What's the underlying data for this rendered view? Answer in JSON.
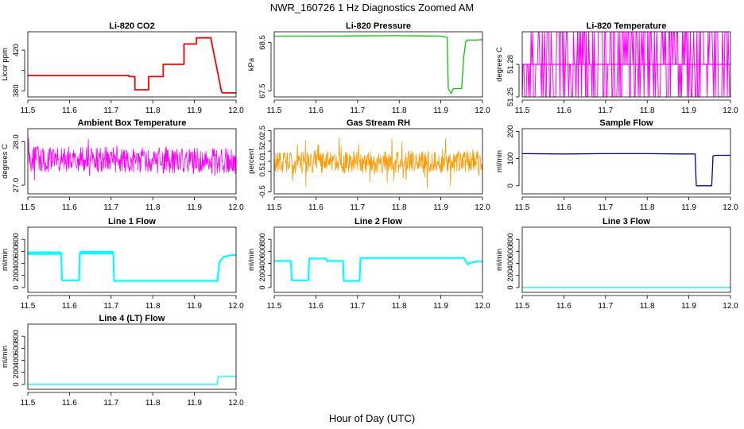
{
  "figure": {
    "title": "NWR_160726  1 Hz Diagnostics Zoomed AM",
    "xlabel": "Hour of Day (UTC)"
  },
  "chart_data": [
    {
      "type": "line",
      "title": "Li-820 CO2",
      "ylabel": "Licor ppm",
      "color": "#ff0000",
      "xlim": [
        11.5,
        12.0
      ],
      "ylim": [
        374,
        438
      ],
      "xticks": [
        11.5,
        11.6,
        11.7,
        11.8,
        11.9,
        12.0
      ],
      "xtick_labels": [
        "11.5",
        "11.6",
        "11.7",
        "11.8",
        "11.9",
        "12.0"
      ],
      "yticks": [
        380,
        400,
        420
      ],
      "ytick_labels": [
        "380",
        "",
        "420"
      ],
      "series": [
        {
          "x": [
            11.5,
            11.743,
            11.743,
            11.757,
            11.757,
            11.79,
            11.79,
            11.825,
            11.825,
            11.875,
            11.875,
            11.905,
            11.905,
            11.94,
            11.94,
            11.955,
            11.965,
            11.968,
            12.0
          ],
          "y": [
            395,
            395,
            394,
            394,
            381,
            381,
            394,
            394,
            406,
            406,
            426,
            426,
            432,
            432,
            430,
            400,
            379,
            378,
            378
          ]
        }
      ]
    },
    {
      "type": "line",
      "title": "Li-820 Pressure",
      "ylabel": "kPa",
      "color": "#00cc00",
      "xlim": [
        11.5,
        12.0
      ],
      "ylim": [
        67.38,
        68.72
      ],
      "xticks": [
        11.5,
        11.6,
        11.7,
        11.8,
        11.9,
        12.0
      ],
      "xtick_labels": [
        "11.5",
        "11.6",
        "11.7",
        "11.8",
        "11.9",
        "12.0"
      ],
      "yticks": [
        67.5,
        68.5
      ],
      "ytick_labels": [
        "67.5",
        "68.5"
      ],
      "series": [
        {
          "x": [
            11.5,
            11.6,
            11.7,
            11.8,
            11.85,
            11.9,
            11.915,
            11.918,
            11.925,
            11.93,
            11.95,
            11.955,
            11.96,
            11.965,
            11.985,
            12.0
          ],
          "y": [
            68.63,
            68.63,
            68.635,
            68.64,
            68.635,
            68.63,
            68.6,
            67.55,
            67.45,
            67.55,
            67.55,
            68.2,
            68.52,
            68.55,
            68.55,
            68.56
          ]
        }
      ]
    },
    {
      "type": "line",
      "title": "Li-820 Temperature",
      "ylabel": "degrees C",
      "color": "#ff00ff",
      "xlim": [
        11.5,
        12.0
      ],
      "ylim": [
        51.25,
        51.31
      ],
      "xticks": [
        11.5,
        11.6,
        11.7,
        11.8,
        11.9,
        12.0
      ],
      "xtick_labels": [
        "11.5",
        "11.6",
        "11.7",
        "11.8",
        "11.9",
        "12.0"
      ],
      "yticks": [
        51.25,
        51.28
      ],
      "ytick_labels": [
        "51.25",
        "51.28"
      ],
      "series": [
        {
          "x": [
            11.5,
            12.0
          ],
          "y": [
            51.28,
            51.28
          ]
        }
      ]
    },
    {
      "type": "line",
      "title": "Ambient Box Temperature",
      "ylabel": "degrees C",
      "color": "#ff00ff",
      "xlim": [
        11.5,
        12.0
      ],
      "ylim": [
        26.8,
        28.3
      ],
      "xticks": [
        11.5,
        11.6,
        11.7,
        11.8,
        11.9,
        12.0
      ],
      "xtick_labels": [
        "11.5",
        "11.6",
        "11.7",
        "11.8",
        "11.9",
        "12.0"
      ],
      "yticks": [
        27.0,
        28.0
      ],
      "ytick_labels": [
        "27.0",
        "28.0"
      ],
      "series": [
        {
          "x": [
            11.5,
            12.0
          ],
          "y": [
            27.6,
            27.55
          ]
        }
      ]
    },
    {
      "type": "line",
      "title": "Gas Stream RH",
      "ylabel": "percent",
      "color": "#ff9900",
      "xlim": [
        11.5,
        12.0
      ],
      "ylim": [
        -0.6,
        2.6
      ],
      "xticks": [
        11.5,
        11.6,
        11.7,
        11.8,
        11.9,
        12.0
      ],
      "xtick_labels": [
        "11.5",
        "11.6",
        "11.7",
        "11.8",
        "11.9",
        "12.0"
      ],
      "yticks": [
        -0.5,
        0.5,
        1.0,
        1.5,
        2.0,
        2.5
      ],
      "ytick_labels": [
        "-0.5",
        "0.5",
        "1.0",
        "1.5",
        "2.0",
        "2.5"
      ],
      "series": [
        {
          "x": [
            11.5,
            12.0
          ],
          "y": [
            0.95,
            0.95
          ]
        }
      ]
    },
    {
      "type": "line",
      "title": "Sample Flow",
      "ylabel": "ml/min",
      "color": "#0000cc",
      "xlim": [
        11.5,
        12.0
      ],
      "ylim": [
        -30,
        210
      ],
      "xticks": [
        11.5,
        11.6,
        11.7,
        11.8,
        11.9,
        12.0
      ],
      "xtick_labels": [
        "11.5",
        "11.6",
        "11.7",
        "11.8",
        "11.9",
        "12.0"
      ],
      "yticks": [
        0,
        100,
        200
      ],
      "ytick_labels": [
        "0",
        "100",
        "200"
      ],
      "series": [
        {
          "x": [
            11.5,
            11.6,
            11.7,
            11.8,
            11.88,
            11.915,
            11.918,
            11.925,
            11.955,
            11.958,
            11.965,
            12.0
          ],
          "y": [
            118,
            117,
            118,
            118,
            117,
            117,
            0,
            0,
            0,
            110,
            112,
            112
          ]
        }
      ]
    },
    {
      "type": "line",
      "title": "Line 1 Flow",
      "ylabel": "ml/min",
      "color": "#00ffff",
      "xlim": [
        11.5,
        12.0
      ],
      "ylim": [
        -80,
        1000
      ],
      "xticks": [
        11.5,
        11.6,
        11.7,
        11.8,
        11.9,
        12.0
      ],
      "xtick_labels": [
        "11.5",
        "11.6",
        "11.7",
        "11.8",
        "11.9",
        "12.0"
      ],
      "yticks": [
        0,
        200,
        400,
        600,
        800
      ],
      "ytick_labels": [
        "0",
        "200",
        "400",
        "600",
        "800"
      ],
      "series": [
        {
          "x": [
            11.5,
            11.58,
            11.582,
            11.623,
            11.625,
            11.705,
            11.707,
            11.8,
            11.955,
            11.96,
            11.97,
            11.99,
            12.0
          ],
          "y": [
            570,
            570,
            120,
            120,
            580,
            580,
            110,
            110,
            110,
            420,
            510,
            540,
            540
          ]
        }
      ]
    },
    {
      "type": "line",
      "title": "Line 2 Flow",
      "ylabel": "ml/min",
      "color": "#00ffff",
      "xlim": [
        11.5,
        12.0
      ],
      "ylim": [
        -80,
        1000
      ],
      "xticks": [
        11.5,
        11.6,
        11.7,
        11.8,
        11.9,
        12.0
      ],
      "xtick_labels": [
        "11.5",
        "11.6",
        "11.7",
        "11.8",
        "11.9",
        "12.0"
      ],
      "yticks": [
        0,
        200,
        400,
        600,
        800
      ],
      "ytick_labels": [
        "0",
        "200",
        "400",
        "600",
        "800"
      ],
      "series": [
        {
          "x": [
            11.5,
            11.54,
            11.542,
            11.582,
            11.584,
            11.625,
            11.627,
            11.665,
            11.667,
            11.705,
            11.707,
            11.8,
            11.955,
            11.965,
            11.97,
            11.985,
            12.0
          ],
          "y": [
            440,
            440,
            120,
            120,
            480,
            480,
            440,
            440,
            110,
            110,
            490,
            490,
            490,
            380,
            410,
            430,
            430
          ]
        }
      ]
    },
    {
      "type": "line",
      "title": "Line 3 Flow",
      "ylabel": "ml/min",
      "color": "#00ffff",
      "xlim": [
        11.5,
        12.0
      ],
      "ylim": [
        -80,
        1000
      ],
      "xticks": [
        11.5,
        11.6,
        11.7,
        11.8,
        11.9,
        12.0
      ],
      "xtick_labels": [
        "11.5",
        "11.6",
        "11.7",
        "11.8",
        "11.9",
        "12.0"
      ],
      "yticks": [
        0,
        200,
        400,
        600,
        800
      ],
      "ytick_labels": [
        "0",
        "200",
        "400",
        "600",
        "800"
      ],
      "series": [
        {
          "x": [
            11.5,
            12.0
          ],
          "y": [
            2,
            2
          ]
        }
      ]
    },
    {
      "type": "line",
      "title": "Line 4 (LT) Flow",
      "ylabel": "ml/min",
      "color": "#00ffff",
      "xlim": [
        11.5,
        12.0
      ],
      "ylim": [
        -80,
        1000
      ],
      "xticks": [
        11.5,
        11.6,
        11.7,
        11.8,
        11.9,
        12.0
      ],
      "xtick_labels": [
        "11.5",
        "11.6",
        "11.7",
        "11.8",
        "11.9",
        "12.0"
      ],
      "yticks": [
        0,
        200,
        400,
        600,
        800
      ],
      "ytick_labels": [
        "0",
        "200",
        "400",
        "600",
        "800"
      ],
      "series": [
        {
          "x": [
            11.5,
            11.955,
            11.957,
            12.0
          ],
          "y": [
            2,
            2,
            130,
            135
          ]
        }
      ]
    }
  ]
}
